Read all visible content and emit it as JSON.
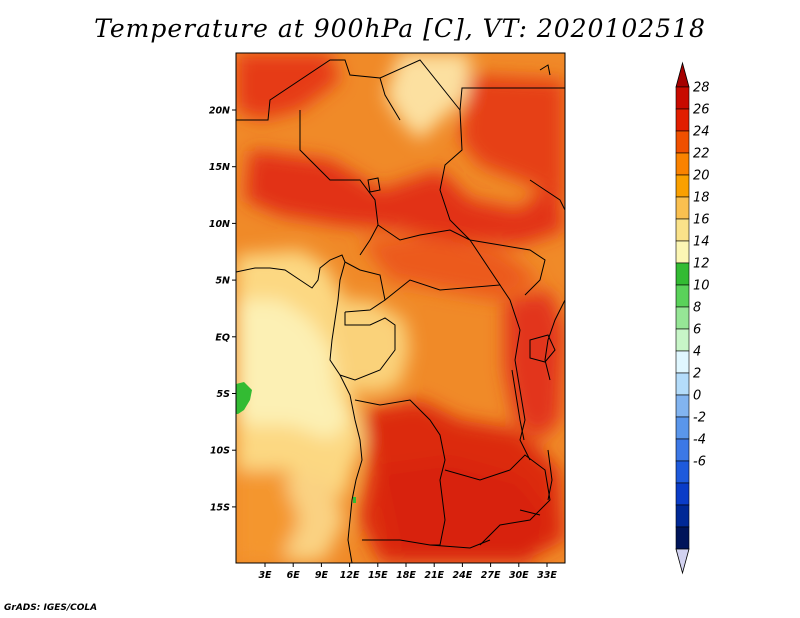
{
  "title": "Temperature at 900hPa [C], VT: 2020102518",
  "credit": "GrADS: IGES/COLA",
  "map": {
    "lon_labels": [
      "3E",
      "6E",
      "9E",
      "12E",
      "15E",
      "18E",
      "21E",
      "24E",
      "27E",
      "30E",
      "33E"
    ],
    "lat_labels": [
      "20N",
      "15N",
      "10N",
      "5N",
      "EQ",
      "5S",
      "10S",
      "15S"
    ]
  },
  "colorbar": {
    "labels": [
      "28",
      "26",
      "24",
      "22",
      "20",
      "18",
      "16",
      "14",
      "12",
      "10",
      "8",
      "6",
      "4",
      "2",
      "0",
      "-2",
      "-4",
      "-6"
    ],
    "colors": [
      "#a50000",
      "#c80a00",
      "#e11e00",
      "#f05000",
      "#fa8200",
      "#faa000",
      "#fac050",
      "#fae28a",
      "#fcf6b4",
      "#33bb33",
      "#5ad25a",
      "#96e696",
      "#c8f5c8",
      "#e0f7ff",
      "#b4dcfa",
      "#82b4f0",
      "#5a96eb",
      "#3c78e6",
      "#1e5adc",
      "#0a3cc8",
      "#002896",
      "#00145a",
      "#d2d2f0"
    ]
  }
}
